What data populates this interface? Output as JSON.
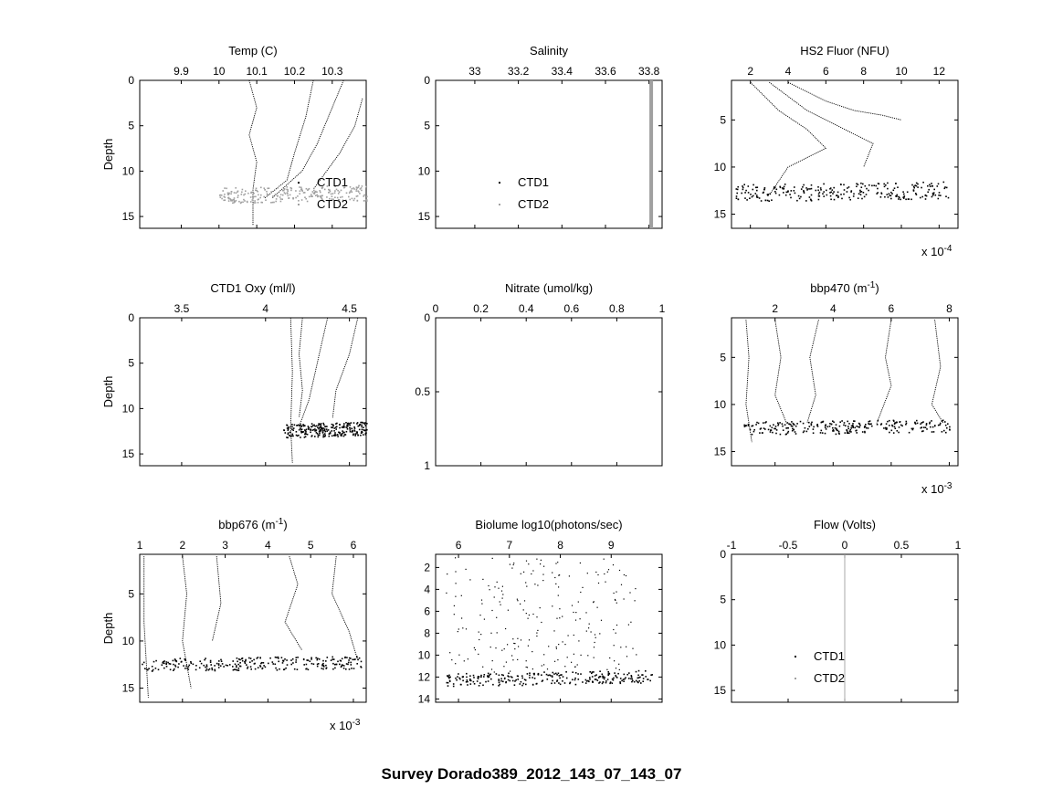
{
  "figure_title": "Survey Dorado389_2012_143_07_143_07",
  "colors": {
    "ctd1": "#000000",
    "ctd2": "#a0a0a0",
    "axis": "#000000"
  },
  "chart_data": [
    {
      "id": "temp",
      "type": "scatter",
      "title": "Temp (C)",
      "ylabel": "Depth",
      "xlim": [
        9.79,
        10.39
      ],
      "ylim": [
        0,
        16.3
      ],
      "y_reversed": true,
      "xticks": [
        9.9,
        10,
        10.1,
        10.2,
        10.3
      ],
      "xtick_labels": [
        "9.9",
        "10",
        "10.1",
        "10.2",
        "10.3"
      ],
      "yticks": [
        0,
        5,
        10,
        15
      ],
      "ytick_labels": [
        "0",
        "5",
        "10",
        "15"
      ],
      "legend": [
        "CTD1",
        "CTD2"
      ],
      "legend_position": "right",
      "series": [
        {
          "name": "CTD1",
          "profiles": [
            [
              10.08,
              0
            ],
            [
              10.1,
              3
            ],
            [
              10.08,
              6
            ],
            [
              10.1,
              9
            ],
            [
              10.09,
              12
            ],
            [
              10.09,
              16
            ]
          ]
        },
        {
          "name": "CTD1",
          "profiles": [
            [
              10.25,
              0
            ],
            [
              10.23,
              4
            ],
            [
              10.2,
              8
            ],
            [
              10.18,
              11
            ],
            [
              10.12,
              13
            ]
          ]
        },
        {
          "name": "CTD1",
          "profiles": [
            [
              10.33,
              0
            ],
            [
              10.3,
              3
            ],
            [
              10.26,
              7
            ],
            [
              10.22,
              10
            ],
            [
              10.14,
              13
            ]
          ]
        },
        {
          "name": "CTD1",
          "profiles": [
            [
              10.38,
              2
            ],
            [
              10.36,
              5
            ],
            [
              10.32,
              8
            ],
            [
              10.25,
              12
            ]
          ]
        },
        {
          "name": "CTD2",
          "band": {
            "x": [
              10,
              10.39
            ],
            "depth": [
              11.8,
              13.5
            ]
          }
        }
      ]
    },
    {
      "id": "salinity",
      "type": "scatter",
      "title": "Salinity",
      "ylabel": "",
      "xlim": [
        32.82,
        33.86
      ],
      "ylim": [
        0,
        16.3
      ],
      "y_reversed": true,
      "xticks": [
        33,
        33.2,
        33.4,
        33.6,
        33.8
      ],
      "xtick_labels": [
        "33",
        "33.2",
        "33.4",
        "33.6",
        "33.8"
      ],
      "yticks": [
        0,
        5,
        10,
        15
      ],
      "ytick_labels": [
        "0",
        "5",
        "10",
        "15"
      ],
      "legend": [
        "CTD1",
        "CTD2"
      ],
      "legend_position": "left",
      "series": [
        {
          "name": "CTD1",
          "profiles": [
            [
              33.81,
              0
            ],
            [
              33.81,
              16.3
            ]
          ]
        },
        {
          "name": "CTD2",
          "profiles": [
            [
              33.81,
              0
            ],
            [
              33.81,
              16.3
            ]
          ]
        }
      ]
    },
    {
      "id": "hs2fluor",
      "type": "scatter",
      "title": "HS2 Fluor (NFU)",
      "ylabel": "",
      "xscale_label": "x 10^-4",
      "xlim": [
        1.0,
        13.0
      ],
      "ylim": [
        0.8,
        16.5
      ],
      "y_reversed": true,
      "xticks": [
        2,
        4,
        6,
        8,
        10,
        12
      ],
      "xtick_labels": [
        "2",
        "4",
        "6",
        "8",
        "10",
        "12"
      ],
      "yticks": [
        5,
        10,
        15
      ],
      "ytick_labels": [
        "5",
        "10",
        "15"
      ],
      "series": [
        {
          "name": "CTD1",
          "profiles": [
            [
              2,
              1
            ],
            [
              3.5,
              4
            ],
            [
              5,
              6
            ],
            [
              6,
              8
            ],
            [
              4,
              10
            ],
            [
              3,
              13
            ]
          ]
        },
        {
          "name": "CTD1",
          "profiles": [
            [
              4,
              1
            ],
            [
              6,
              3
            ],
            [
              7.5,
              4
            ],
            [
              9,
              4.5
            ],
            [
              10,
              5
            ]
          ]
        },
        {
          "name": "CTD1",
          "profiles": [
            [
              3,
              1
            ],
            [
              5,
              4
            ],
            [
              7,
              6
            ],
            [
              8.5,
              7.5
            ],
            [
              8,
              10
            ]
          ]
        },
        {
          "name": "CTD1",
          "band": {
            "x": [
              1.2,
              12.5
            ],
            "depth": [
              11.8,
              13.6
            ]
          }
        }
      ]
    },
    {
      "id": "oxy",
      "type": "scatter",
      "title": "CTD1 Oxy (ml/l)",
      "ylabel": "Depth",
      "xlim": [
        3.25,
        4.6
      ],
      "ylim": [
        0,
        16.3
      ],
      "y_reversed": true,
      "xticks": [
        3.5,
        4,
        4.5
      ],
      "xtick_labels": [
        "3.5",
        "4",
        "4.5"
      ],
      "yticks": [
        0,
        5,
        10,
        15
      ],
      "ytick_labels": [
        "0",
        "5",
        "10",
        "15"
      ],
      "series": [
        {
          "name": "CTD1",
          "profiles": [
            [
              4.15,
              0
            ],
            [
              4.16,
              6
            ],
            [
              4.15,
              12
            ],
            [
              4.16,
              16
            ]
          ]
        },
        {
          "name": "CTD1",
          "profiles": [
            [
              4.22,
              0
            ],
            [
              4.2,
              4
            ],
            [
              4.22,
              8
            ],
            [
              4.2,
              11
            ]
          ]
        },
        {
          "name": "CTD1",
          "profiles": [
            [
              4.37,
              0
            ],
            [
              4.32,
              4
            ],
            [
              4.26,
              9
            ],
            [
              4.2,
              12
            ]
          ]
        },
        {
          "name": "CTD1",
          "profiles": [
            [
              4.55,
              0
            ],
            [
              4.5,
              4
            ],
            [
              4.42,
              8
            ],
            [
              4.4,
              11
            ]
          ]
        },
        {
          "name": "CTD1",
          "band": {
            "x": [
              4.1,
              4.6
            ],
            "depth": [
              11.7,
              13.2
            ]
          }
        }
      ]
    },
    {
      "id": "nitrate",
      "type": "scatter",
      "title": "Nitrate (umol/kg)",
      "ylabel": "",
      "xlim": [
        0,
        1
      ],
      "ylim": [
        0,
        1
      ],
      "y_reversed": true,
      "xticks": [
        0,
        0.2,
        0.4,
        0.6,
        0.8,
        1
      ],
      "xtick_labels": [
        "0",
        "0.2",
        "0.4",
        "0.6",
        "0.8",
        "1"
      ],
      "yticks": [
        0,
        0.5,
        1
      ],
      "ytick_labels": [
        "0",
        "0.5",
        "1"
      ],
      "series": []
    },
    {
      "id": "bbp470",
      "type": "scatter",
      "title": "bbp470 (m-1)",
      "ylabel": "",
      "xscale_label": "x 10^-3",
      "xlim": [
        0.5,
        8.3
      ],
      "ylim": [
        0.8,
        16.5
      ],
      "y_reversed": true,
      "xticks": [
        2,
        4,
        6,
        8
      ],
      "xtick_labels": [
        "2",
        "4",
        "6",
        "8"
      ],
      "yticks": [
        5,
        10,
        15
      ],
      "ytick_labels": [
        "5",
        "10",
        "15"
      ],
      "series": [
        {
          "name": "CTD1",
          "profiles": [
            [
              1,
              1
            ],
            [
              1.1,
              5
            ],
            [
              1,
              10
            ],
            [
              1.2,
              14
            ]
          ]
        },
        {
          "name": "CTD1",
          "profiles": [
            [
              2,
              1
            ],
            [
              2.2,
              5
            ],
            [
              2,
              9
            ],
            [
              2.4,
              12
            ]
          ]
        },
        {
          "name": "CTD1",
          "profiles": [
            [
              3.5,
              1
            ],
            [
              3.2,
              5
            ],
            [
              3.4,
              9
            ],
            [
              3.1,
              12
            ]
          ]
        },
        {
          "name": "CTD1",
          "profiles": [
            [
              6,
              1
            ],
            [
              5.8,
              5
            ],
            [
              6,
              8
            ],
            [
              5.5,
              12
            ]
          ]
        },
        {
          "name": "CTD1",
          "profiles": [
            [
              7.5,
              1
            ],
            [
              7.7,
              6
            ],
            [
              7.4,
              10
            ],
            [
              7.8,
              12
            ]
          ]
        },
        {
          "name": "CTD1",
          "band": {
            "x": [
              0.9,
              8
            ],
            "depth": [
              11.8,
              13.2
            ]
          }
        }
      ]
    },
    {
      "id": "bbp676",
      "type": "scatter",
      "title": "bbp676 (m-1)",
      "ylabel": "Depth",
      "xscale_label": "x 10^-3",
      "xlim": [
        1,
        6.3
      ],
      "ylim": [
        0.8,
        16.5
      ],
      "y_reversed": true,
      "xticks": [
        1,
        2,
        3,
        4,
        5,
        6
      ],
      "xtick_labels": [
        "1",
        "2",
        "3",
        "4",
        "5",
        "6"
      ],
      "yticks": [
        5,
        10,
        15
      ],
      "ytick_labels": [
        "5",
        "10",
        "15"
      ],
      "series": [
        {
          "name": "CTD1",
          "profiles": [
            [
              1.1,
              1
            ],
            [
              1.1,
              8
            ],
            [
              1.2,
              16
            ]
          ]
        },
        {
          "name": "CTD1",
          "profiles": [
            [
              2,
              1
            ],
            [
              2.1,
              5
            ],
            [
              2,
              10
            ],
            [
              2.2,
              15
            ]
          ]
        },
        {
          "name": "CTD1",
          "profiles": [
            [
              2.8,
              1
            ],
            [
              2.9,
              6
            ],
            [
              2.7,
              10
            ]
          ]
        },
        {
          "name": "CTD1",
          "profiles": [
            [
              4.5,
              1
            ],
            [
              4.7,
              4
            ],
            [
              4.4,
              8
            ],
            [
              4.8,
              11
            ]
          ]
        },
        {
          "name": "CTD1",
          "profiles": [
            [
              5.6,
              1
            ],
            [
              5.5,
              5
            ],
            [
              5.9,
              9
            ],
            [
              6.1,
              12
            ]
          ]
        },
        {
          "name": "CTD1",
          "band": {
            "x": [
              1,
              6.2
            ],
            "depth": [
              11.8,
              13.2
            ]
          }
        }
      ]
    },
    {
      "id": "biolume",
      "type": "scatter",
      "title": "Biolume log10(photons/sec)",
      "ylabel": "",
      "xlim": [
        5.55,
        10
      ],
      "ylim": [
        0.8,
        14.3
      ],
      "y_reversed": true,
      "xticks": [
        6,
        7,
        8,
        9
      ],
      "xtick_labels": [
        "6",
        "7",
        "8",
        "9"
      ],
      "yticks": [
        2,
        4,
        6,
        8,
        10,
        12,
        14
      ],
      "ytick_labels": [
        "2",
        "4",
        "6",
        "8",
        "10",
        "12",
        "14"
      ],
      "series": [
        {
          "name": "CTD1",
          "scatter_region": {
            "x": [
              5.75,
              9.5
            ],
            "depth": [
              1,
              11.5
            ]
          }
        },
        {
          "name": "CTD1",
          "band": {
            "x": [
              5.75,
              9.8
            ],
            "depth": [
              11.6,
              12.8
            ]
          }
        }
      ]
    },
    {
      "id": "flow",
      "type": "line",
      "title": "Flow (Volts)",
      "ylabel": "",
      "xlim": [
        -1,
        1
      ],
      "ylim": [
        0,
        16.3
      ],
      "y_reversed": true,
      "xticks": [
        -1,
        -0.5,
        0,
        0.5,
        1
      ],
      "xtick_labels": [
        "-1",
        "-0.5",
        "0",
        "0.5",
        "1"
      ],
      "yticks": [
        0,
        5,
        10,
        15
      ],
      "ytick_labels": [
        "0",
        "5",
        "10",
        "15"
      ],
      "legend": [
        "CTD1",
        "CTD2"
      ],
      "legend_position": "left",
      "series": [
        {
          "name": "CTD2",
          "profiles": [
            [
              0,
              0
            ],
            [
              0,
              16.3
            ]
          ]
        }
      ]
    }
  ]
}
